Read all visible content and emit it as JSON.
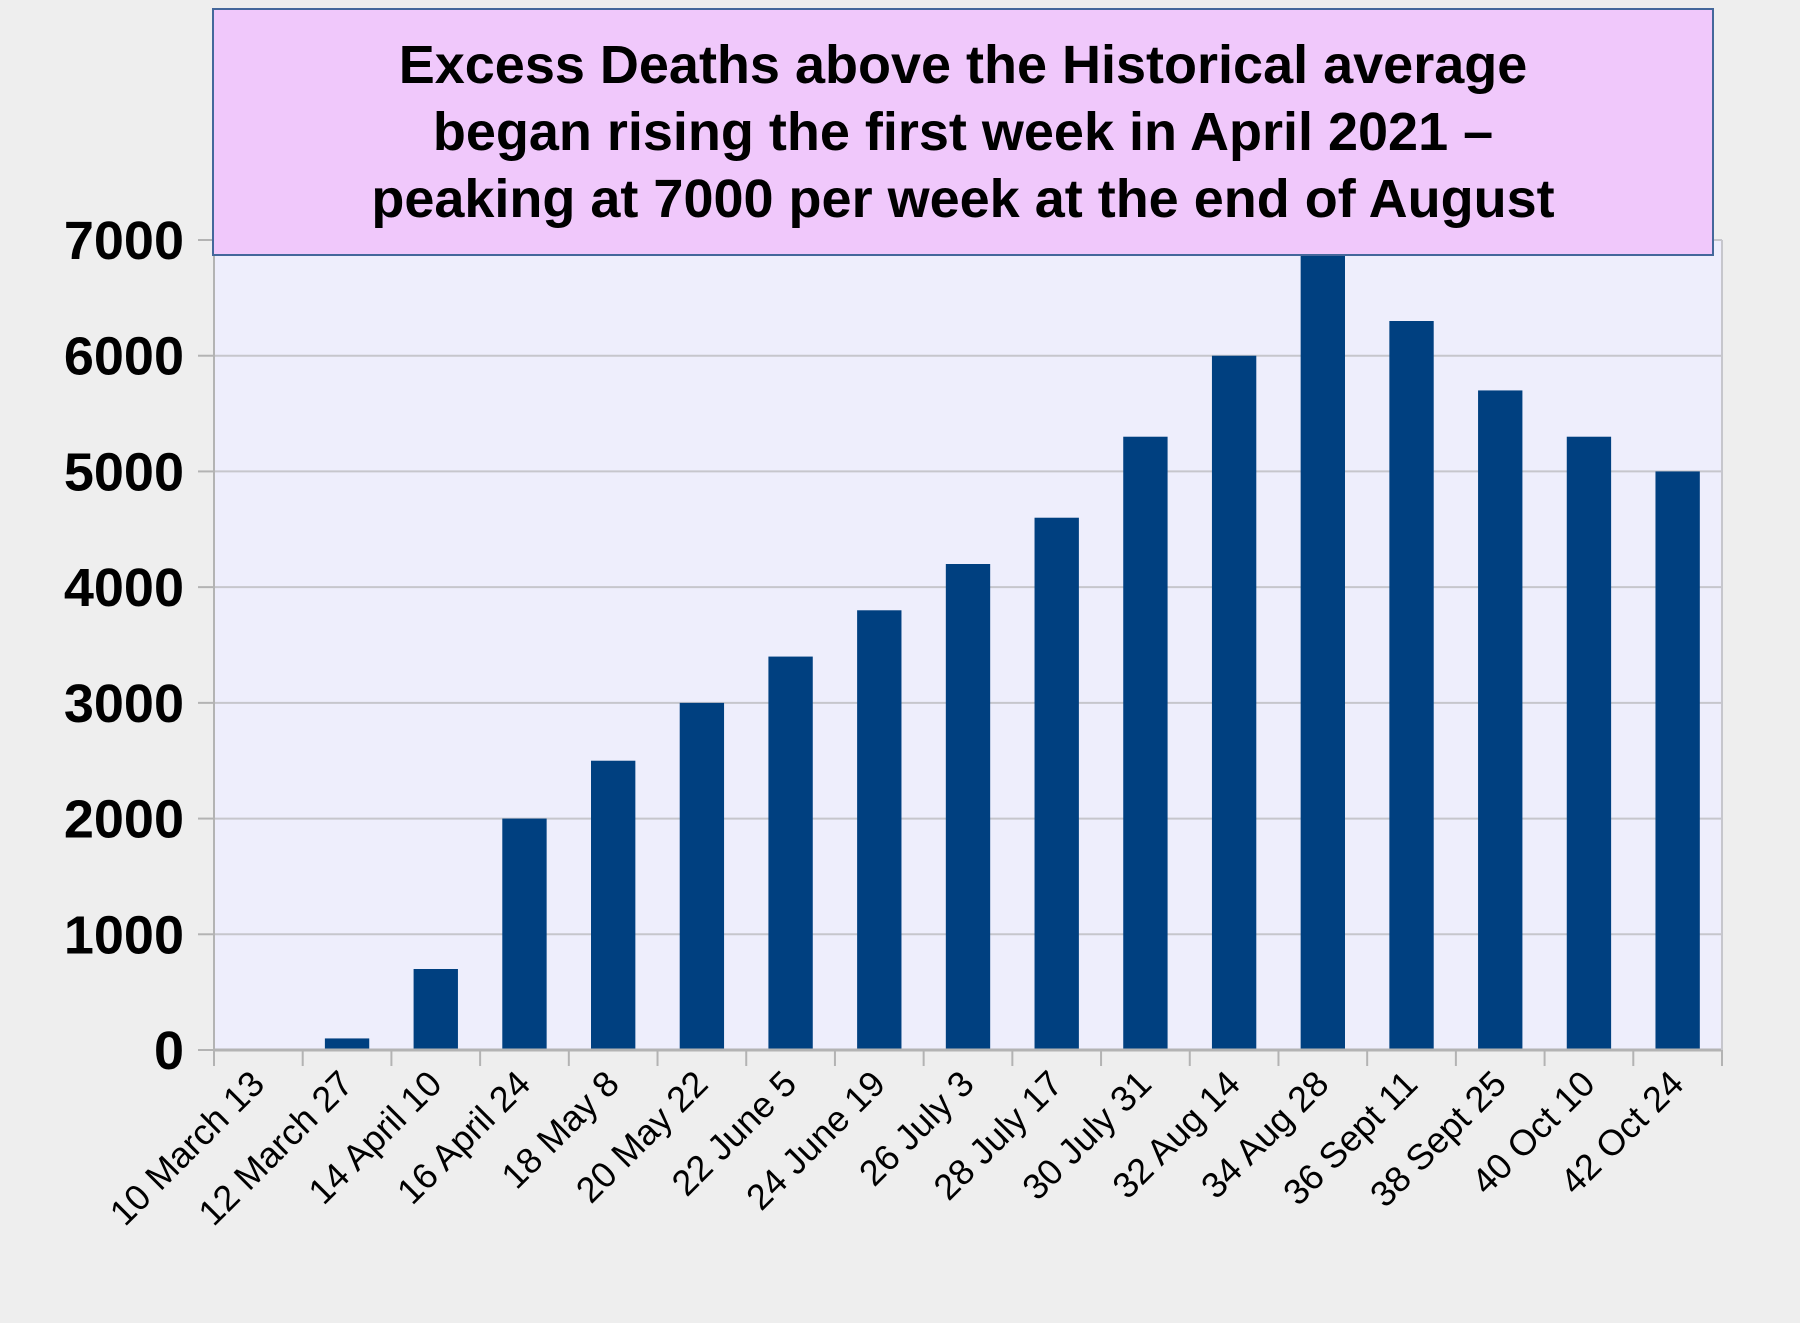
{
  "chart_data": {
    "type": "bar",
    "title_lines": [
      "Excess Deaths above the Historical average",
      "began rising the first week in April 2021 –",
      "peaking at 7000 per week at the end of August"
    ],
    "categories": [
      "10 March 13",
      "12 March 27",
      "14 April 10",
      "16 April 24",
      "18 May 8",
      "20 May 22",
      "22 June 5",
      "24 June 19",
      "26 July 3",
      "28 July 17",
      "30 July 31",
      "32 Aug 14",
      "34 Aug 28",
      "36 Sept 11",
      "38 Sept 25",
      "40 Oct 10",
      "42 Oct 24"
    ],
    "values": [
      0,
      100,
      700,
      2000,
      2500,
      3000,
      3400,
      3800,
      4200,
      4600,
      5300,
      6000,
      7000,
      6300,
      5700,
      5300,
      5000
    ],
    "yticks": [
      "0",
      "1000",
      "2000",
      "3000",
      "4000",
      "5000",
      "6000",
      "7000"
    ],
    "ylim": [
      0,
      7000
    ],
    "grid": true,
    "xlabel": "",
    "ylabel": ""
  },
  "colors": {
    "bar": "#004080",
    "plot_bg": "#eeeefc",
    "grid": "#c6c6cc",
    "title_bg": "#f0c8fb",
    "title_border": "#44679b",
    "page_bg": "#eeeeee"
  }
}
